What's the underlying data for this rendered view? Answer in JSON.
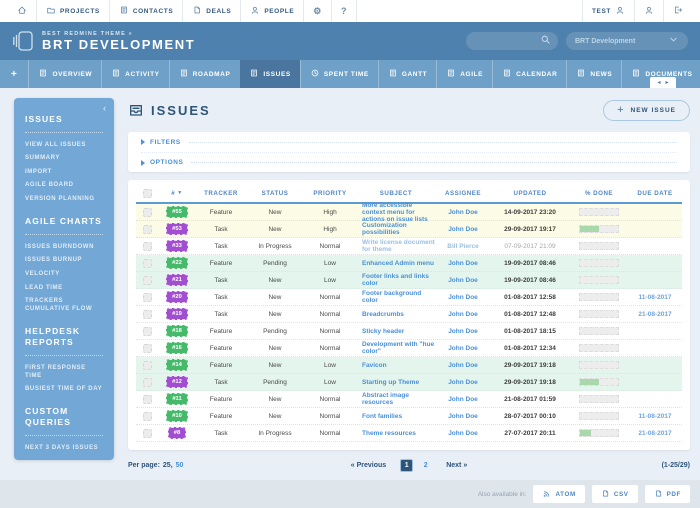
{
  "colors": {
    "brand_bar": "#4e81ad",
    "tab_bar": "#6fa0c8",
    "tab_active": "#49759e",
    "sidebar": "#73a8d6",
    "accent_link": "#4990d9",
    "navy": "#2f547a",
    "feature_badge": "#46b96a",
    "task_badge": "#a14fd0",
    "row_high": "#fcfbe6",
    "row_low": "#e3f5ec",
    "progress_fill": "#a9d8ad"
  },
  "topbar": {
    "nav": [
      {
        "label": "PROJECTS",
        "icon": "projects-folder-icon"
      },
      {
        "label": "CONTACTS",
        "icon": "contacts-icon"
      },
      {
        "label": "DEALS",
        "icon": "deals-icon"
      },
      {
        "label": "PEOPLE",
        "icon": "people-icon"
      },
      {
        "label": "",
        "icon": "gear-icon"
      },
      {
        "label": "",
        "icon": "help-icon"
      }
    ],
    "user_label": "TEST"
  },
  "brand": {
    "kicker": "BEST REDMINE THEME »",
    "title": "BRT DEVELOPMENT",
    "project_selector": "BRT Development"
  },
  "tabs": [
    {
      "label": "OVERVIEW",
      "icon": "overview-icon",
      "active": false
    },
    {
      "label": "ACTIVITY",
      "icon": "activity-icon",
      "active": false
    },
    {
      "label": "ROADMAP",
      "icon": "roadmap-icon",
      "active": false
    },
    {
      "label": "ISSUES",
      "icon": "issues-icon",
      "active": true
    },
    {
      "label": "SPENT TIME",
      "icon": "spent-time-icon",
      "active": false
    },
    {
      "label": "GANTT",
      "icon": "gantt-icon",
      "active": false
    },
    {
      "label": "AGILE",
      "icon": "agile-icon",
      "active": false
    },
    {
      "label": "CALENDAR",
      "icon": "calendar-icon",
      "active": false
    },
    {
      "label": "NEWS",
      "icon": "news-icon",
      "active": false
    },
    {
      "label": "DOCUMENTS",
      "icon": "documents-icon",
      "active": false
    },
    {
      "label": "WIKI",
      "icon": "wiki-icon",
      "active": false
    },
    {
      "label": "FILES",
      "icon": "files-icon",
      "active": false
    }
  ],
  "sidebar": {
    "sections": [
      {
        "heading": "ISSUES",
        "items": [
          "VIEW ALL ISSUES",
          "SUMMARY",
          "IMPORT",
          "AGILE BOARD",
          "VERSION PLANNING"
        ]
      },
      {
        "heading": "AGILE CHARTS",
        "items": [
          "ISSUES BURNDOWN",
          "ISSUES BURNUP",
          "VELOCITY",
          "LEAD TIME",
          "TRACKERS CUMULATIVE FLOW"
        ]
      },
      {
        "heading": "HELPDESK REPORTS",
        "items": [
          "FIRST RESPONSE TIME",
          "BUSIEST TIME OF DAY"
        ]
      },
      {
        "heading": "CUSTOM QUERIES",
        "items": [
          "NEXT 3 DAYS ISSUES"
        ]
      }
    ]
  },
  "main": {
    "title": "ISSUES",
    "new_issue_label": "NEW ISSUE",
    "filters_label": "FILTERS",
    "options_label": "OPTIONS"
  },
  "table": {
    "headers": [
      "#",
      "TRACKER",
      "STATUS",
      "PRIORITY",
      "SUBJECT",
      "ASSIGNEE",
      "UPDATED",
      "% DONE",
      "DUE DATE"
    ],
    "rows": [
      {
        "id": "#55",
        "tracker": "Feature",
        "status": "New",
        "priority": "High",
        "subject": "More accessible context menu for actions on issue lists",
        "assignee": "John Doe",
        "updated": "14-09-2017 23:20",
        "done": 0,
        "due": "",
        "highlight": "high",
        "muted": false
      },
      {
        "id": "#53",
        "tracker": "Task",
        "status": "New",
        "priority": "High",
        "subject": "Customization possibilities",
        "assignee": "John Doe",
        "updated": "29-09-2017 19:17",
        "done": 50,
        "due": "",
        "highlight": "high",
        "muted": false
      },
      {
        "id": "#33",
        "tracker": "Task",
        "status": "In Progress",
        "priority": "Normal",
        "subject": "Write license document for theme",
        "assignee": "Bill Pierce",
        "updated": "07-09-2017 21:09",
        "done": 0,
        "due": "",
        "highlight": "none",
        "muted": true
      },
      {
        "id": "#22",
        "tracker": "Feature",
        "status": "Pending",
        "priority": "Low",
        "subject": "Enhanced Admin menu",
        "assignee": "John Doe",
        "updated": "19-09-2017 08:46",
        "done": 0,
        "due": "",
        "highlight": "low",
        "muted": false
      },
      {
        "id": "#21",
        "tracker": "Task",
        "status": "New",
        "priority": "Low",
        "subject": "Footer links and links color",
        "assignee": "John Doe",
        "updated": "19-09-2017 08:46",
        "done": 0,
        "due": "",
        "highlight": "low",
        "muted": false
      },
      {
        "id": "#20",
        "tracker": "Task",
        "status": "New",
        "priority": "Normal",
        "subject": "Footer background color",
        "assignee": "John Doe",
        "updated": "01-08-2017 12:58",
        "done": 0,
        "due": "11-08-2017",
        "highlight": "none",
        "muted": false
      },
      {
        "id": "#19",
        "tracker": "Task",
        "status": "New",
        "priority": "Normal",
        "subject": "Breadcrumbs",
        "assignee": "John Doe",
        "updated": "01-08-2017 12:48",
        "done": 0,
        "due": "21-08-2017",
        "highlight": "none",
        "muted": false
      },
      {
        "id": "#18",
        "tracker": "Feature",
        "status": "Pending",
        "priority": "Normal",
        "subject": "Sticky header",
        "assignee": "John Doe",
        "updated": "01-08-2017 18:15",
        "done": 0,
        "due": "",
        "highlight": "none",
        "muted": false
      },
      {
        "id": "#16",
        "tracker": "Feature",
        "status": "New",
        "priority": "Normal",
        "subject": "Development with \"hue color\"",
        "assignee": "John Doe",
        "updated": "01-08-2017 12:34",
        "done": 0,
        "due": "",
        "highlight": "none",
        "muted": false
      },
      {
        "id": "#14",
        "tracker": "Feature",
        "status": "New",
        "priority": "Low",
        "subject": "Favicon",
        "assignee": "John Doe",
        "updated": "29-09-2017 19:18",
        "done": 0,
        "due": "",
        "highlight": "low",
        "muted": false
      },
      {
        "id": "#12",
        "tracker": "Task",
        "status": "Pending",
        "priority": "Low",
        "subject": "Starting up Theme",
        "assignee": "John Doe",
        "updated": "29-09-2017 19:18",
        "done": 50,
        "due": "",
        "highlight": "low",
        "muted": false
      },
      {
        "id": "#11",
        "tracker": "Feature",
        "status": "New",
        "priority": "Normal",
        "subject": "Abstract image resources",
        "assignee": "John Doe",
        "updated": "21-08-2017 01:59",
        "done": 0,
        "due": "",
        "highlight": "none",
        "muted": false
      },
      {
        "id": "#10",
        "tracker": "Feature",
        "status": "New",
        "priority": "Normal",
        "subject": "Font families",
        "assignee": "John Doe",
        "updated": "28-07-2017 00:10",
        "done": 0,
        "due": "11-08-2017",
        "highlight": "none",
        "muted": false
      },
      {
        "id": "#8",
        "tracker": "Task",
        "status": "In Progress",
        "priority": "Normal",
        "subject": "Theme resources",
        "assignee": "John Doe",
        "updated": "27-07-2017 20:11",
        "done": 30,
        "due": "21-08-2017",
        "highlight": "none",
        "muted": false
      }
    ]
  },
  "list_footer": {
    "per_page_label": "Per page:",
    "per_page_options": [
      "25",
      "50"
    ],
    "prev_label": "« Previous",
    "pages": [
      "1",
      "2"
    ],
    "active_page": "1",
    "next_label": "Next »",
    "range": "(1-25/29)"
  },
  "bottombar": {
    "label": "Also available in:",
    "formats": [
      {
        "label": "ATOM",
        "icon": "atom-feed-icon"
      },
      {
        "label": "CSV",
        "icon": "csv-file-icon"
      },
      {
        "label": "PDF",
        "icon": "pdf-file-icon"
      }
    ]
  }
}
